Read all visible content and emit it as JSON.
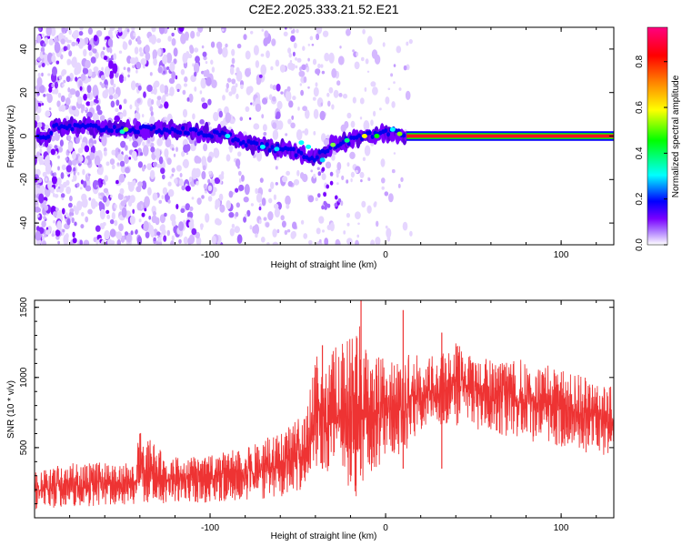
{
  "title": "C2E2.2025.333.21.52.E21",
  "chart_data": [
    {
      "type": "heatmap",
      "name": "spectrogram",
      "xlabel": "Height of straight line (km)",
      "ylabel": "Frequency (Hz)",
      "xlim": [
        -200,
        130
      ],
      "ylim": [
        -50,
        50
      ],
      "xticks": [
        -100,
        0,
        100
      ],
      "xtick_labels": [
        "-100",
        "0",
        "100"
      ],
      "yticks": [
        -40,
        -20,
        0,
        20,
        40
      ],
      "ytick_labels": [
        "-40",
        "-20",
        "0",
        "20",
        "40"
      ],
      "ridge": [
        {
          "x": -190,
          "y": 4
        },
        {
          "x": -170,
          "y": 4
        },
        {
          "x": -150,
          "y": 3
        },
        {
          "x": -130,
          "y": 3
        },
        {
          "x": -110,
          "y": 2
        },
        {
          "x": -90,
          "y": 0
        },
        {
          "x": -75,
          "y": -4
        },
        {
          "x": -60,
          "y": -6
        },
        {
          "x": -50,
          "y": -8
        },
        {
          "x": -40,
          "y": -10
        },
        {
          "x": -30,
          "y": -4
        },
        {
          "x": -20,
          "y": -2
        },
        {
          "x": -10,
          "y": 0
        },
        {
          "x": 0,
          "y": 1
        },
        {
          "x": 5,
          "y": 2
        },
        {
          "x": 12,
          "y": 0
        },
        {
          "x": 130,
          "y": 0
        }
      ],
      "colorbar": {
        "label": "Normalized spectral amplitude",
        "range": [
          0,
          0.95
        ],
        "ticks": [
          0.0,
          0.2,
          0.4,
          0.6,
          0.8
        ],
        "tick_labels": [
          "0.0",
          "0.2",
          "0.4",
          "0.6",
          "0.8"
        ],
        "colormap": [
          "#ffffff",
          "#7a00ff",
          "#0000ff",
          "#00ffff",
          "#00ff00",
          "#ffff00",
          "#ff8000",
          "#ff0000",
          "#ff0080"
        ]
      }
    },
    {
      "type": "line",
      "name": "snr",
      "xlabel": "Height of straight line (km)",
      "ylabel": "SNR (10 * v/v)",
      "xlim": [
        -200,
        130
      ],
      "ylim": [
        0,
        1550
      ],
      "xticks": [
        -100,
        0,
        100
      ],
      "xtick_labels": [
        "-100",
        "0",
        "100"
      ],
      "yticks": [
        500,
        1000,
        1500
      ],
      "ytick_labels": [
        "500",
        "1000",
        "1500"
      ],
      "line_color": "#ee3333",
      "envelope_x": [
        -200,
        -180,
        -160,
        -145,
        -140,
        -120,
        -100,
        -80,
        -60,
        -45,
        -40,
        -35,
        -30,
        -20,
        -15,
        -10,
        0,
        10,
        15,
        20,
        30,
        40,
        60,
        80,
        100,
        120,
        130
      ],
      "envelope_low": [
        60,
        80,
        80,
        80,
        100,
        100,
        110,
        120,
        150,
        200,
        300,
        350,
        300,
        200,
        100,
        250,
        450,
        450,
        550,
        600,
        650,
        650,
        600,
        550,
        500,
        450,
        400
      ],
      "envelope_high": [
        350,
        380,
        400,
        400,
        600,
        430,
        450,
        500,
        600,
        750,
        1200,
        1000,
        1200,
        1300,
        1500,
        1200,
        1150,
        1050,
        1200,
        1100,
        1150,
        1250,
        1150,
        1100,
        1050,
        1000,
        950
      ],
      "spikes": [
        {
          "x": -140,
          "y": 600
        },
        {
          "x": -36,
          "y": 1230
        },
        {
          "x": -14,
          "y": 1550
        },
        {
          "x": 10,
          "y": 1480
        },
        {
          "x": 32,
          "y": 1320
        }
      ]
    }
  ]
}
